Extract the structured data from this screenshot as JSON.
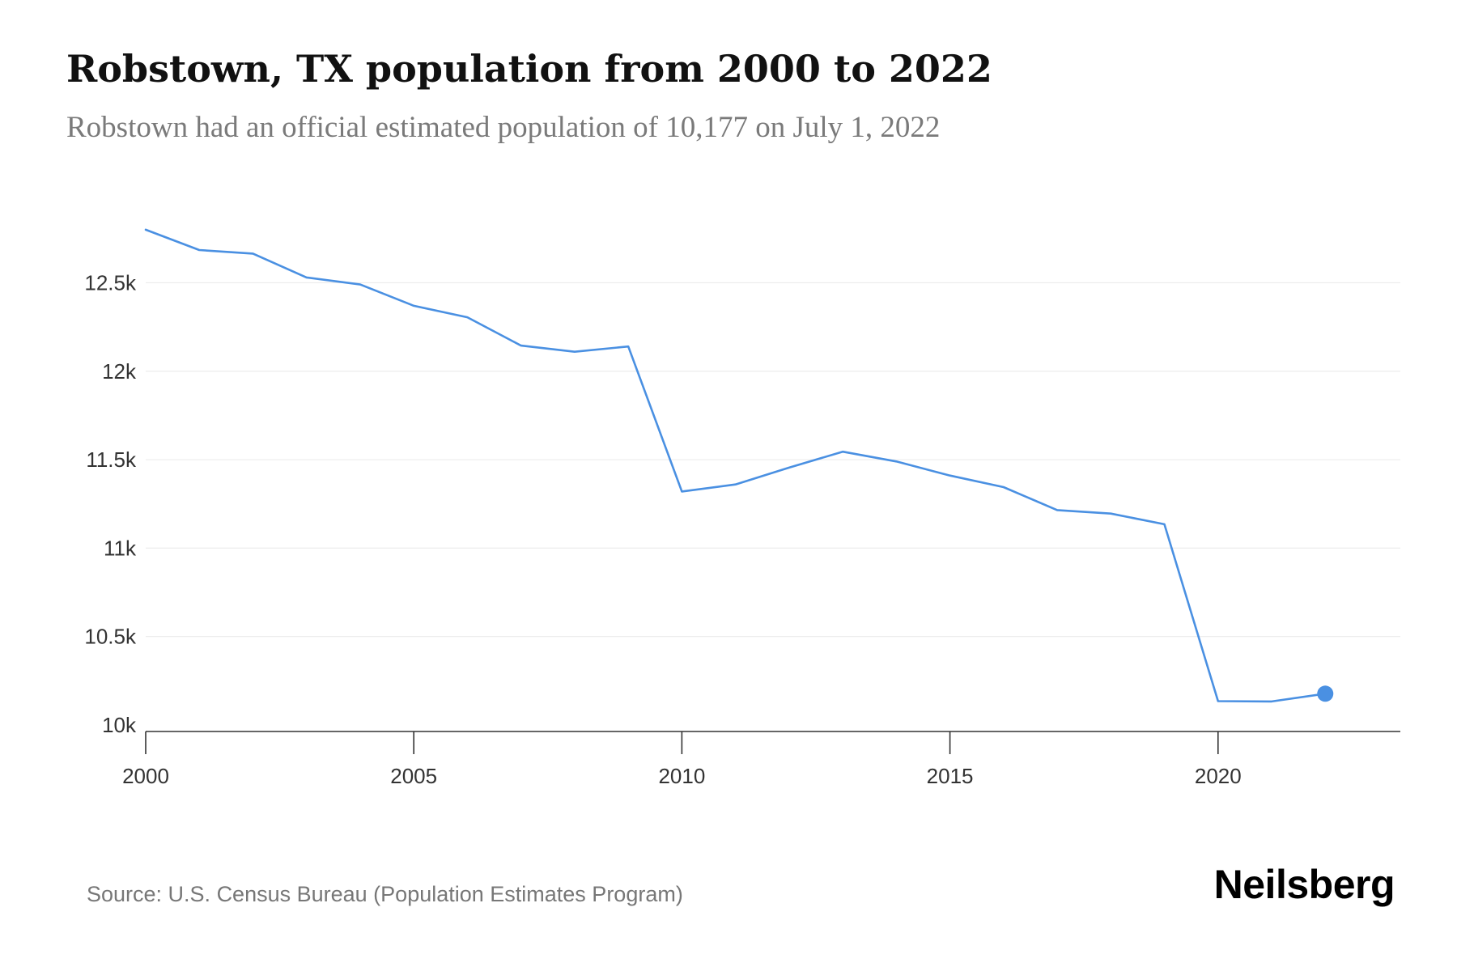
{
  "title": "Robstown, TX population from 2000 to 2022",
  "subtitle": "Robstown had an official estimated population of 10,177 on July 1, 2022",
  "source": "Source: U.S. Census Bureau (Population Estimates Program)",
  "brand": "Neilsberg",
  "colors": {
    "line": "#4a90e2",
    "grid": "#ececec",
    "axis": "#333333",
    "tick_label": "#333333"
  },
  "chart_data": {
    "type": "line",
    "title": "Robstown, TX population from 2000 to 2022",
    "subtitle": "Robstown had an official estimated population of 10,177 on July 1, 2022",
    "xlabel": "",
    "ylabel": "",
    "x": [
      2000,
      2001,
      2002,
      2003,
      2004,
      2005,
      2006,
      2007,
      2008,
      2009,
      2010,
      2011,
      2012,
      2013,
      2014,
      2015,
      2016,
      2017,
      2018,
      2019,
      2020,
      2021,
      2022
    ],
    "series": [
      {
        "values": [
          12800,
          12685,
          12665,
          12530,
          12490,
          12370,
          12305,
          12145,
          12110,
          12140,
          11320,
          11360,
          11455,
          11545,
          11490,
          11410,
          11345,
          11215,
          11195,
          11135,
          10135,
          10133,
          10177
        ]
      }
    ],
    "xlim": [
      2000,
      2023.4
    ],
    "ylim": [
      10000,
      12900
    ],
    "x_ticks": [
      2000,
      2005,
      2010,
      2015,
      2020
    ],
    "x_tick_labels": [
      "2000",
      "2005",
      "2010",
      "2015",
      "2020"
    ],
    "y_ticks": [
      10000,
      10500,
      11000,
      11500,
      12000,
      12500
    ],
    "y_tick_labels": [
      "10k",
      "10.5k",
      "11k",
      "11.5k",
      "12k",
      "12.5k"
    ],
    "grid": true,
    "highlight_last_point": true
  }
}
